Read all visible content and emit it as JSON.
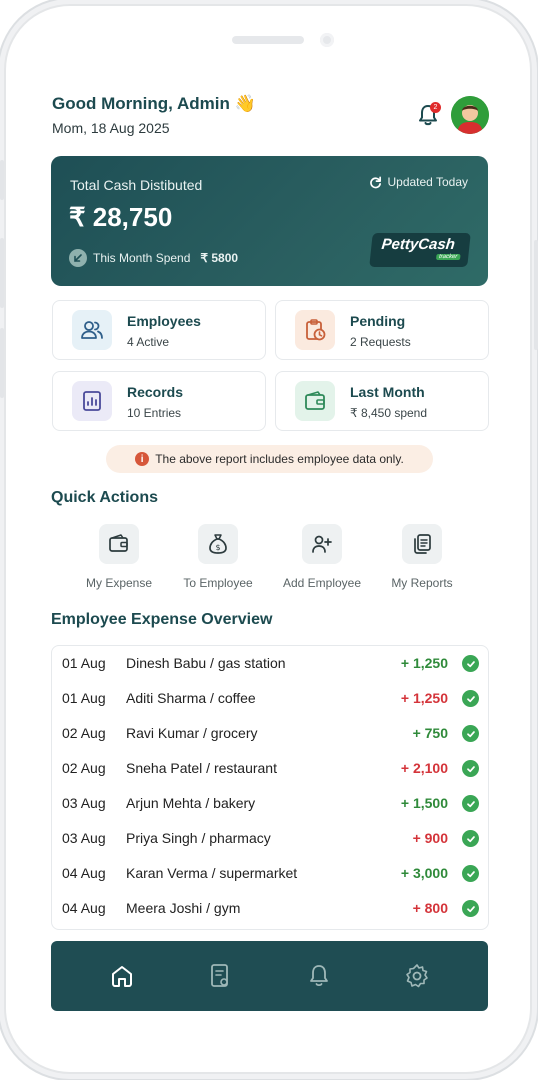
{
  "header": {
    "greeting": "Good Morning, Admin 👋",
    "date": "Mom, 18 Aug 2025",
    "notification_count": "2"
  },
  "summary_card": {
    "title": "Total Cash Distibuted",
    "amount": "₹ 28,750",
    "updated": "Updated Today",
    "month_spend_label": "This Month Spend",
    "month_spend_value": "₹ 5800",
    "logo_text": "PettyCash",
    "logo_sub": "tracker"
  },
  "tiles": [
    {
      "title": "Employees",
      "subtitle": "4 Active",
      "icon": "users-icon",
      "color": "#e6f1f7"
    },
    {
      "title": "Pending",
      "subtitle": "2 Requests",
      "icon": "clipboard-clock-icon",
      "color": "#fbeadf"
    },
    {
      "title": "Records",
      "subtitle": "10 Entries",
      "icon": "report-icon",
      "color": "#ebeaf7"
    },
    {
      "title": "Last Month",
      "subtitle": "₹ 8,450 spend",
      "icon": "wallet-icon",
      "color": "#e3f3ea"
    }
  ],
  "notice": "The above report includes employee data only.",
  "quick_actions": {
    "title": "Quick Actions",
    "items": [
      {
        "label": "My Expense",
        "icon": "wallet-icon"
      },
      {
        "label": "To Employee",
        "icon": "money-bag-icon"
      },
      {
        "label": "Add Employee",
        "icon": "add-user-icon"
      },
      {
        "label": "My Reports",
        "icon": "documents-icon"
      }
    ]
  },
  "overview": {
    "title": "Employee Expense Overview",
    "rows": [
      {
        "date": "01 Aug",
        "desc": "Dinesh Babu / gas station",
        "amount": "+ 1,250",
        "type": "pos"
      },
      {
        "date": "01 Aug",
        "desc": "Aditi Sharma / coffee",
        "amount": "+ 1,250",
        "type": "neg"
      },
      {
        "date": "02 Aug",
        "desc": "Ravi Kumar / grocery",
        "amount": "+ 750",
        "type": "pos"
      },
      {
        "date": "02 Aug",
        "desc": "Sneha Patel / restaurant",
        "amount": "+ 2,100",
        "type": "neg"
      },
      {
        "date": "03 Aug",
        "desc": "Arjun Mehta / bakery",
        "amount": "+ 1,500",
        "type": "pos"
      },
      {
        "date": "03 Aug",
        "desc": "Priya Singh / pharmacy",
        "amount": "+ 900",
        "type": "neg"
      },
      {
        "date": "04 Aug",
        "desc": "Karan Verma / supermarket",
        "amount": "+ 3,000",
        "type": "pos"
      },
      {
        "date": "04 Aug",
        "desc": "Meera Joshi / gym",
        "amount": "+ 800",
        "type": "neg"
      }
    ]
  },
  "bottom_nav": [
    "home-icon",
    "report-view-icon",
    "bell-icon",
    "gear-icon"
  ],
  "colors": {
    "primary": "#1f4d53",
    "positive": "#2f8a3a",
    "negative": "#d4343a"
  }
}
